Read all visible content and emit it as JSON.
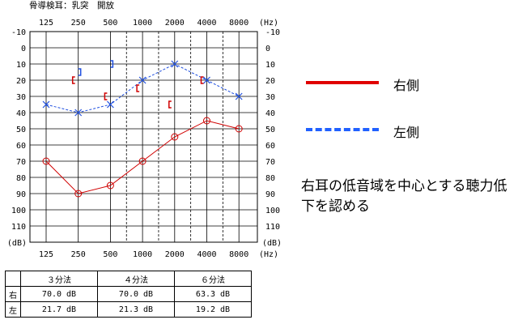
{
  "title": "骨導検耳：乳突　開放",
  "chart_data": {
    "type": "scatter",
    "x_tick_labels": [
      "125",
      "250",
      "500",
      "1000",
      "2000",
      "4000",
      "8000"
    ],
    "x_unit": "(Hz)",
    "y_unit": "(dB)",
    "y_tick_labels": [
      "-10",
      "0",
      "10",
      "20",
      "30",
      "40",
      "50",
      "60",
      "70",
      "80",
      "90",
      "100",
      "110"
    ],
    "ylim": [
      -10,
      120
    ],
    "y_inverted": true,
    "x_scale": "log",
    "grid": true,
    "series": [
      {
        "name": "右側",
        "kind": "air-conduction",
        "color": "#d00000",
        "marker": "circle",
        "line": "solid",
        "x": [
          125,
          250,
          500,
          1000,
          2000,
          4000,
          8000
        ],
        "y": [
          70,
          90,
          85,
          70,
          55,
          45,
          50
        ]
      },
      {
        "name": "左側",
        "kind": "air-conduction",
        "color": "#2050e0",
        "marker": "cross",
        "line": "dashed",
        "x": [
          125,
          250,
          500,
          1000,
          2000,
          4000,
          8000
        ],
        "y": [
          35,
          40,
          35,
          20,
          10,
          20,
          30
        ]
      },
      {
        "kind": "bone-conduction-right",
        "color": "#d00000",
        "marker": "[",
        "x": [
          250,
          500,
          1000,
          2000,
          4000
        ],
        "y": [
          20,
          30,
          25,
          35,
          20
        ]
      },
      {
        "kind": "bone-conduction-left",
        "color": "#2050e0",
        "marker": "]",
        "x": [
          250,
          500
        ],
        "y": [
          15,
          10
        ]
      }
    ]
  },
  "legend": {
    "right": {
      "label": "右側",
      "color": "#e00000",
      "style": "solid"
    },
    "left": {
      "label": "左側",
      "color": "#2060ff",
      "style": "dashed"
    }
  },
  "annotation": "右耳の低音域を中心とする聴力低下を認める",
  "table": {
    "headers": [
      "３分法",
      "４分法",
      "６分法"
    ],
    "rows": [
      {
        "label": "右",
        "values": [
          "70.0 dB",
          "70.0 dB",
          "63.3 dB"
        ]
      },
      {
        "label": "左",
        "values": [
          "21.7 dB",
          "21.3 dB",
          "19.2 dB"
        ]
      }
    ]
  }
}
